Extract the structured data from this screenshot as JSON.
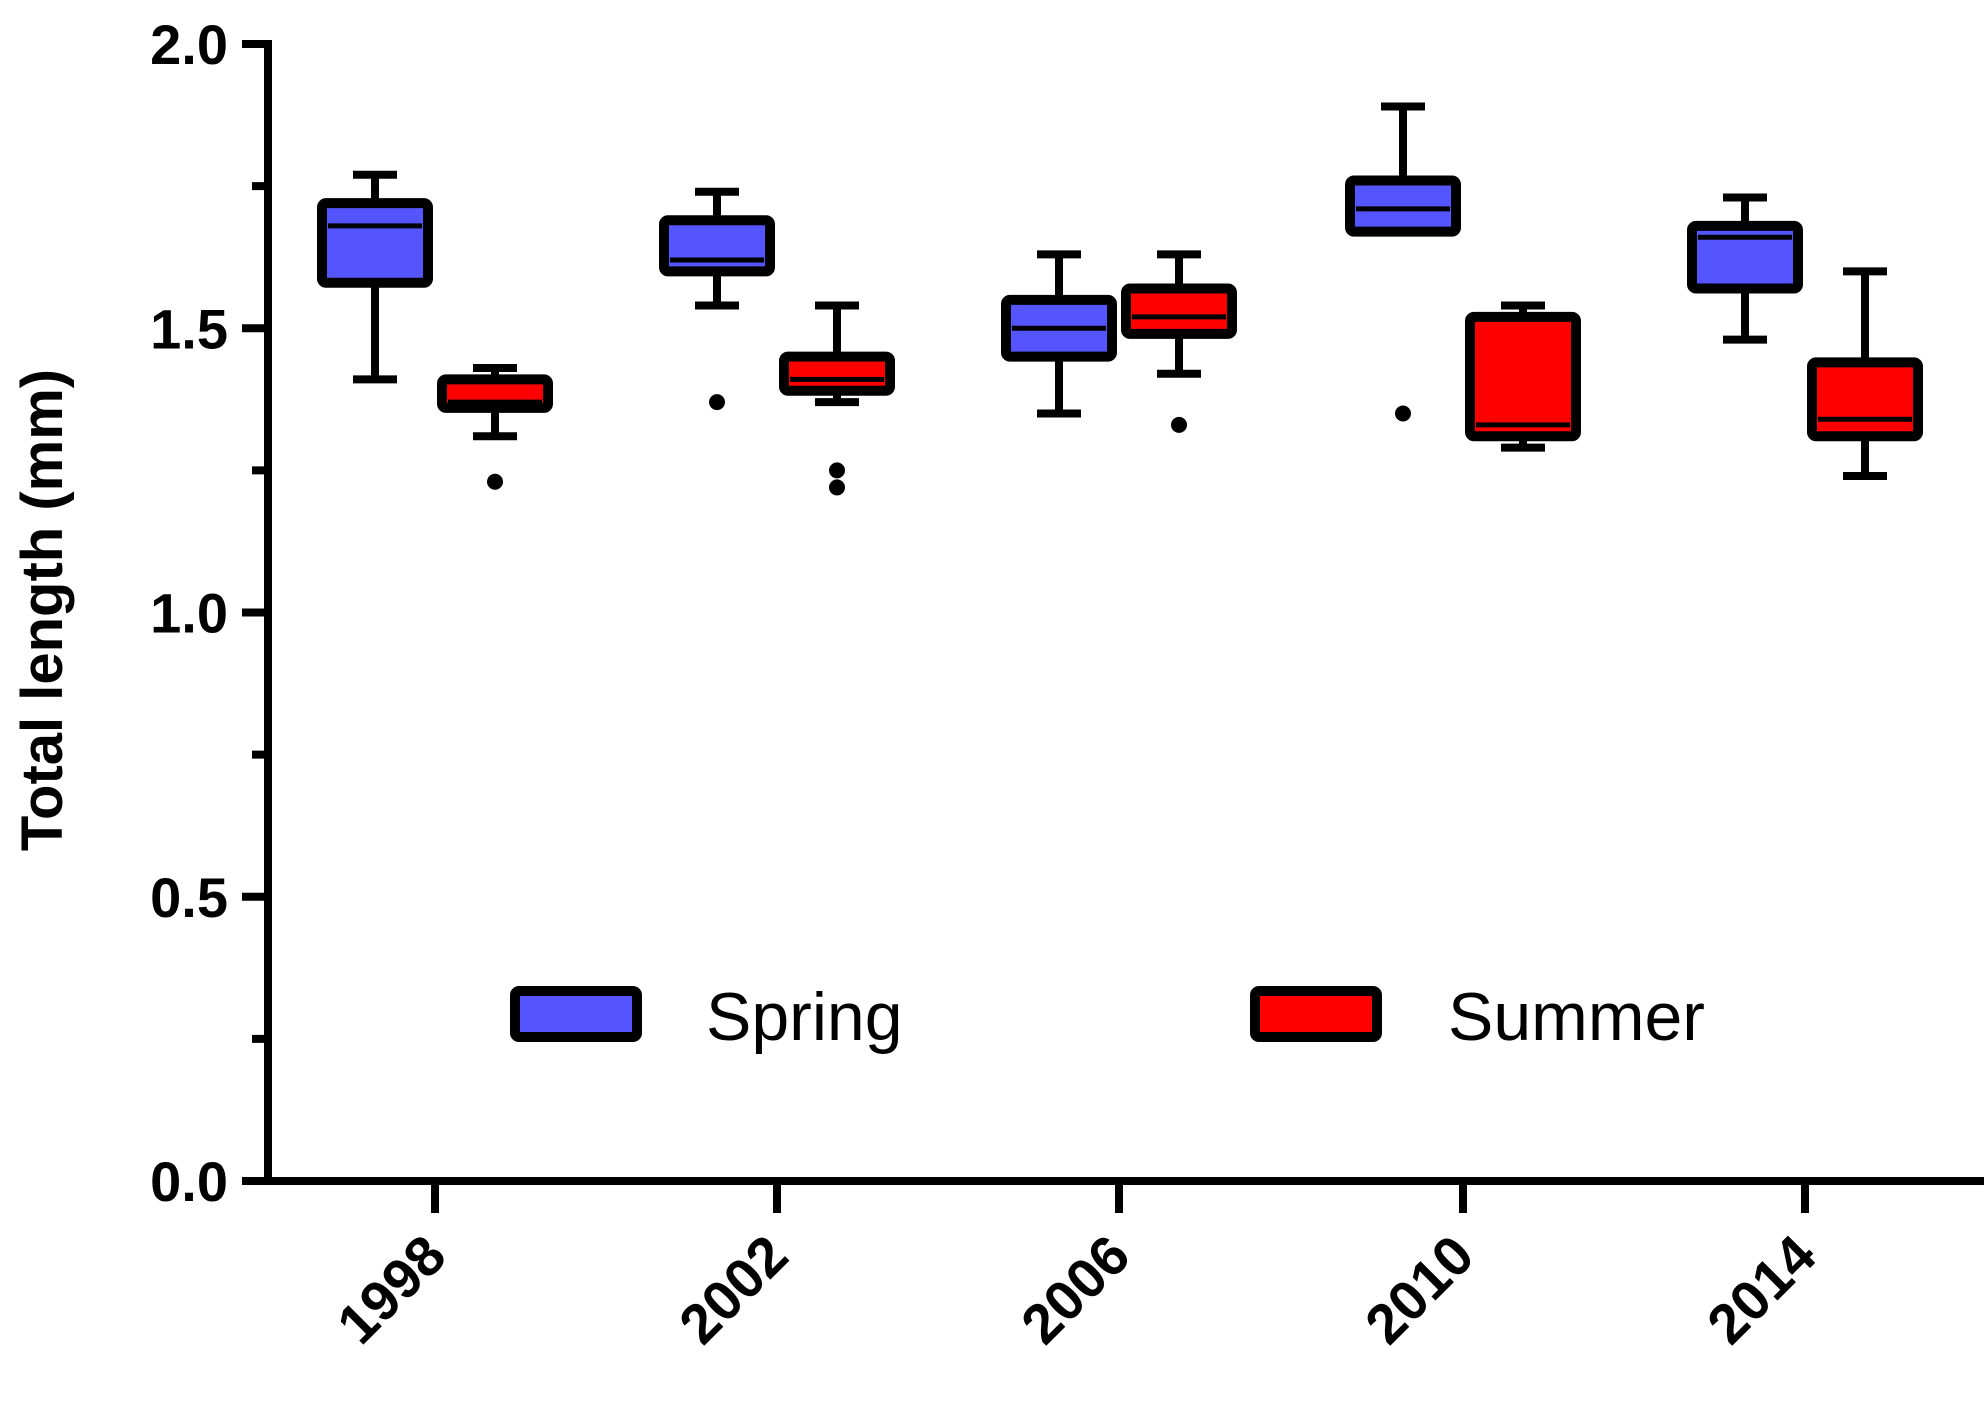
{
  "chart_data": {
    "type": "box",
    "title": "",
    "xlabel": "",
    "ylabel": "Total length (mm)",
    "ylim": [
      0,
      2.0
    ],
    "yticks": [
      "0.0",
      "0.5",
      "1.0",
      "1.5",
      "2.0"
    ],
    "ytick_values": [
      0,
      0.5,
      1.0,
      1.5,
      2.0
    ],
    "yminor_tick_values": [
      0.25,
      0.75,
      1.25,
      1.75
    ],
    "categories": [
      "1998",
      "2002",
      "2006",
      "2010",
      "2014"
    ],
    "grid": false,
    "legend_position": "center",
    "series": [
      {
        "name": "Spring",
        "color": "#5555ff",
        "boxes": [
          {
            "category": "1998",
            "whisker_low": 1.41,
            "q1": 1.58,
            "median": 1.68,
            "q3": 1.72,
            "whisker_high": 1.77,
            "outliers": []
          },
          {
            "category": "2002",
            "whisker_low": 1.54,
            "q1": 1.6,
            "median": 1.62,
            "q3": 1.69,
            "whisker_high": 1.74,
            "outliers": [
              1.37
            ]
          },
          {
            "category": "2006",
            "whisker_low": 1.35,
            "q1": 1.45,
            "median": 1.5,
            "q3": 1.55,
            "whisker_high": 1.63,
            "outliers": []
          },
          {
            "category": "2010",
            "whisker_low": 1.67,
            "q1": 1.67,
            "median": 1.71,
            "q3": 1.76,
            "whisker_high": 1.89,
            "outliers": [
              1.35
            ]
          },
          {
            "category": "2014",
            "whisker_low": 1.48,
            "q1": 1.57,
            "median": 1.66,
            "q3": 1.68,
            "whisker_high": 1.73,
            "outliers": []
          }
        ]
      },
      {
        "name": "Summer",
        "color": "#ff0000",
        "boxes": [
          {
            "category": "1998",
            "whisker_low": 1.31,
            "q1": 1.36,
            "median": 1.37,
            "q3": 1.41,
            "whisker_high": 1.43,
            "outliers": [
              1.23
            ]
          },
          {
            "category": "2002",
            "whisker_low": 1.37,
            "q1": 1.39,
            "median": 1.41,
            "q3": 1.45,
            "whisker_high": 1.54,
            "outliers": [
              1.25,
              1.22
            ]
          },
          {
            "category": "2006",
            "whisker_low": 1.42,
            "q1": 1.49,
            "median": 1.52,
            "q3": 1.57,
            "whisker_high": 1.63,
            "outliers": [
              1.33
            ]
          },
          {
            "category": "2010",
            "whisker_low": 1.29,
            "q1": 1.31,
            "median": 1.33,
            "q3": 1.52,
            "whisker_high": 1.54,
            "outliers": []
          },
          {
            "category": "2014",
            "whisker_low": 1.24,
            "q1": 1.31,
            "median": 1.34,
            "q3": 1.44,
            "whisker_high": 1.6,
            "outliers": []
          }
        ]
      }
    ]
  }
}
